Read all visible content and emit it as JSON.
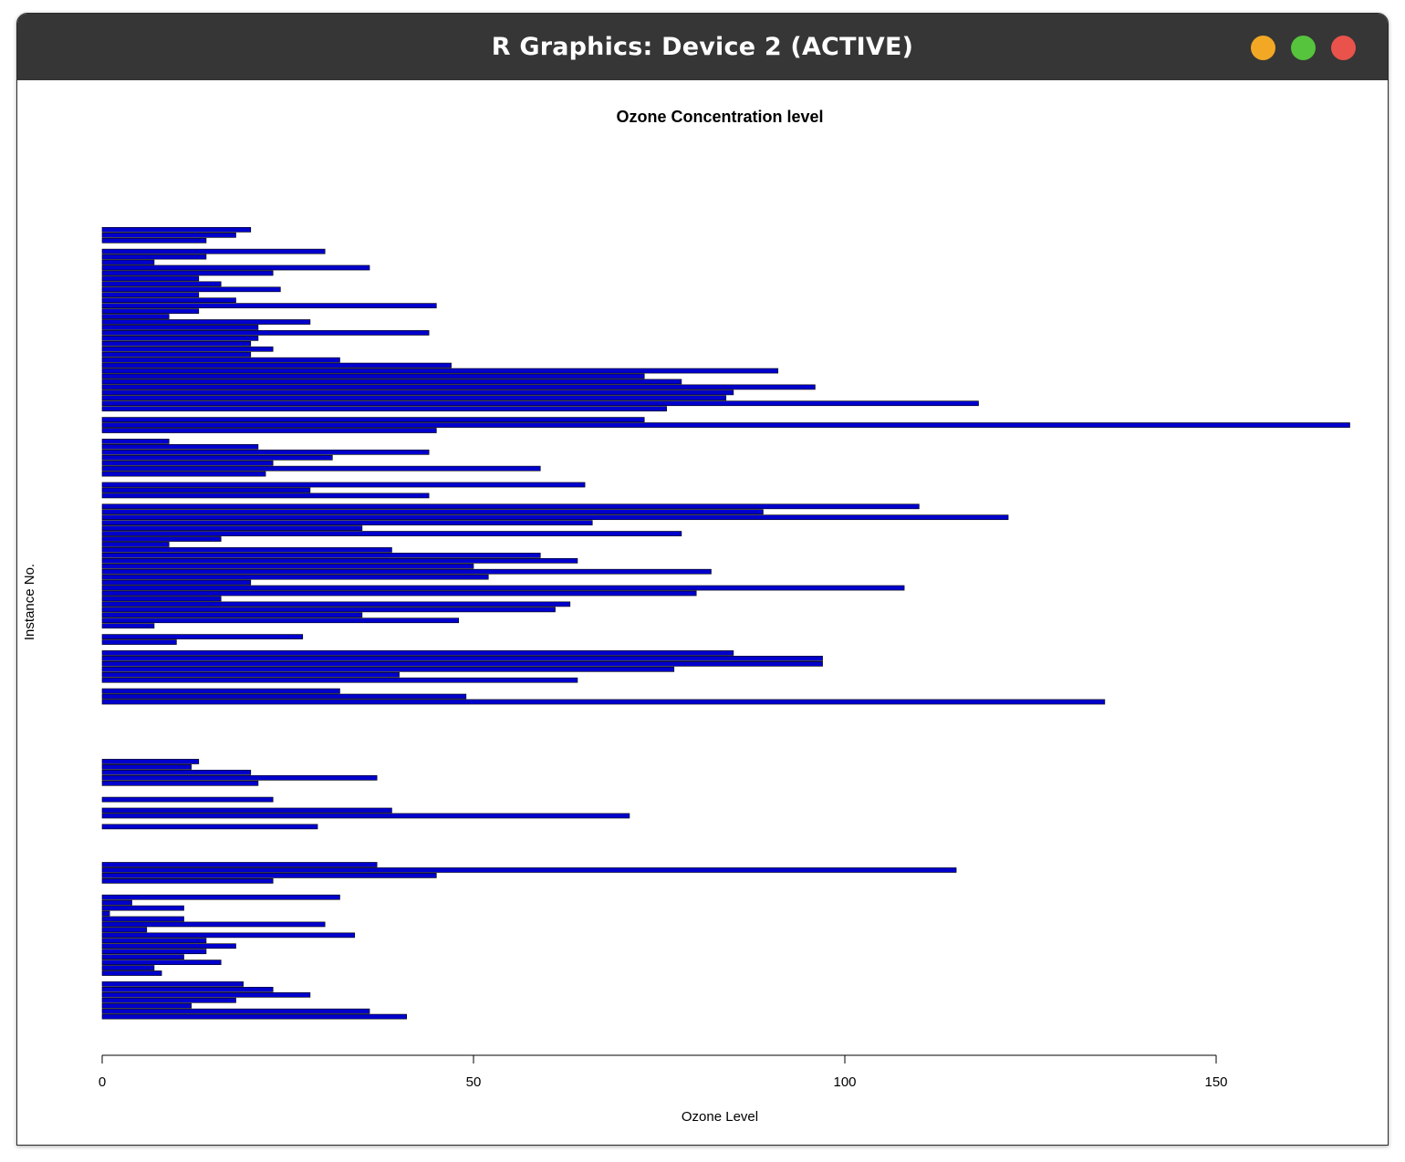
{
  "window": {
    "title": "R Graphics: Device 2 (ACTIVE)"
  },
  "colors": {
    "bar_fill": "#0000cd",
    "bar_stroke": "#000000",
    "titlebar": "#363636",
    "btn_min": "#f2a824",
    "btn_max": "#56c43c",
    "btn_close": "#e9534c"
  },
  "chart_data": {
    "type": "bar",
    "orientation": "horizontal",
    "title": "Ozone Concentration level",
    "xlabel": "Ozone Level",
    "ylabel": "Instance No.",
    "xlim": [
      0,
      168
    ],
    "x_ticks": [
      0,
      50,
      100,
      150
    ],
    "x_tick_labels": [
      "0",
      "50",
      "100",
      "150"
    ],
    "grid": false,
    "legend": "none",
    "values": [
      41,
      36,
      12,
      18,
      28,
      23,
      19,
      null,
      8,
      7,
      16,
      11,
      14,
      18,
      14,
      34,
      6,
      30,
      11,
      1,
      11,
      4,
      32,
      null,
      null,
      23,
      45,
      115,
      37,
      null,
      null,
      null,
      null,
      null,
      null,
      29,
      null,
      71,
      39,
      null,
      23,
      null,
      null,
      21,
      37,
      20,
      12,
      13,
      null,
      null,
      null,
      null,
      null,
      null,
      null,
      null,
      null,
      null,
      135,
      49,
      32,
      null,
      64,
      40,
      77,
      97,
      97,
      85,
      null,
      10,
      27,
      null,
      7,
      48,
      35,
      61,
      63,
      16,
      80,
      108,
      20,
      52,
      82,
      50,
      64,
      59,
      39,
      9,
      16,
      78,
      35,
      66,
      122,
      89,
      110,
      null,
      44,
      28,
      65,
      null,
      22,
      59,
      23,
      31,
      44,
      21,
      9,
      null,
      45,
      168,
      73,
      null,
      76,
      118,
      84,
      85,
      96,
      78,
      73,
      91,
      47,
      32,
      20,
      23,
      20,
      21,
      44,
      21,
      28,
      9,
      13,
      45,
      18,
      13,
      24,
      16,
      13,
      23,
      36,
      7,
      14,
      30,
      null,
      14,
      18,
      20
    ]
  }
}
